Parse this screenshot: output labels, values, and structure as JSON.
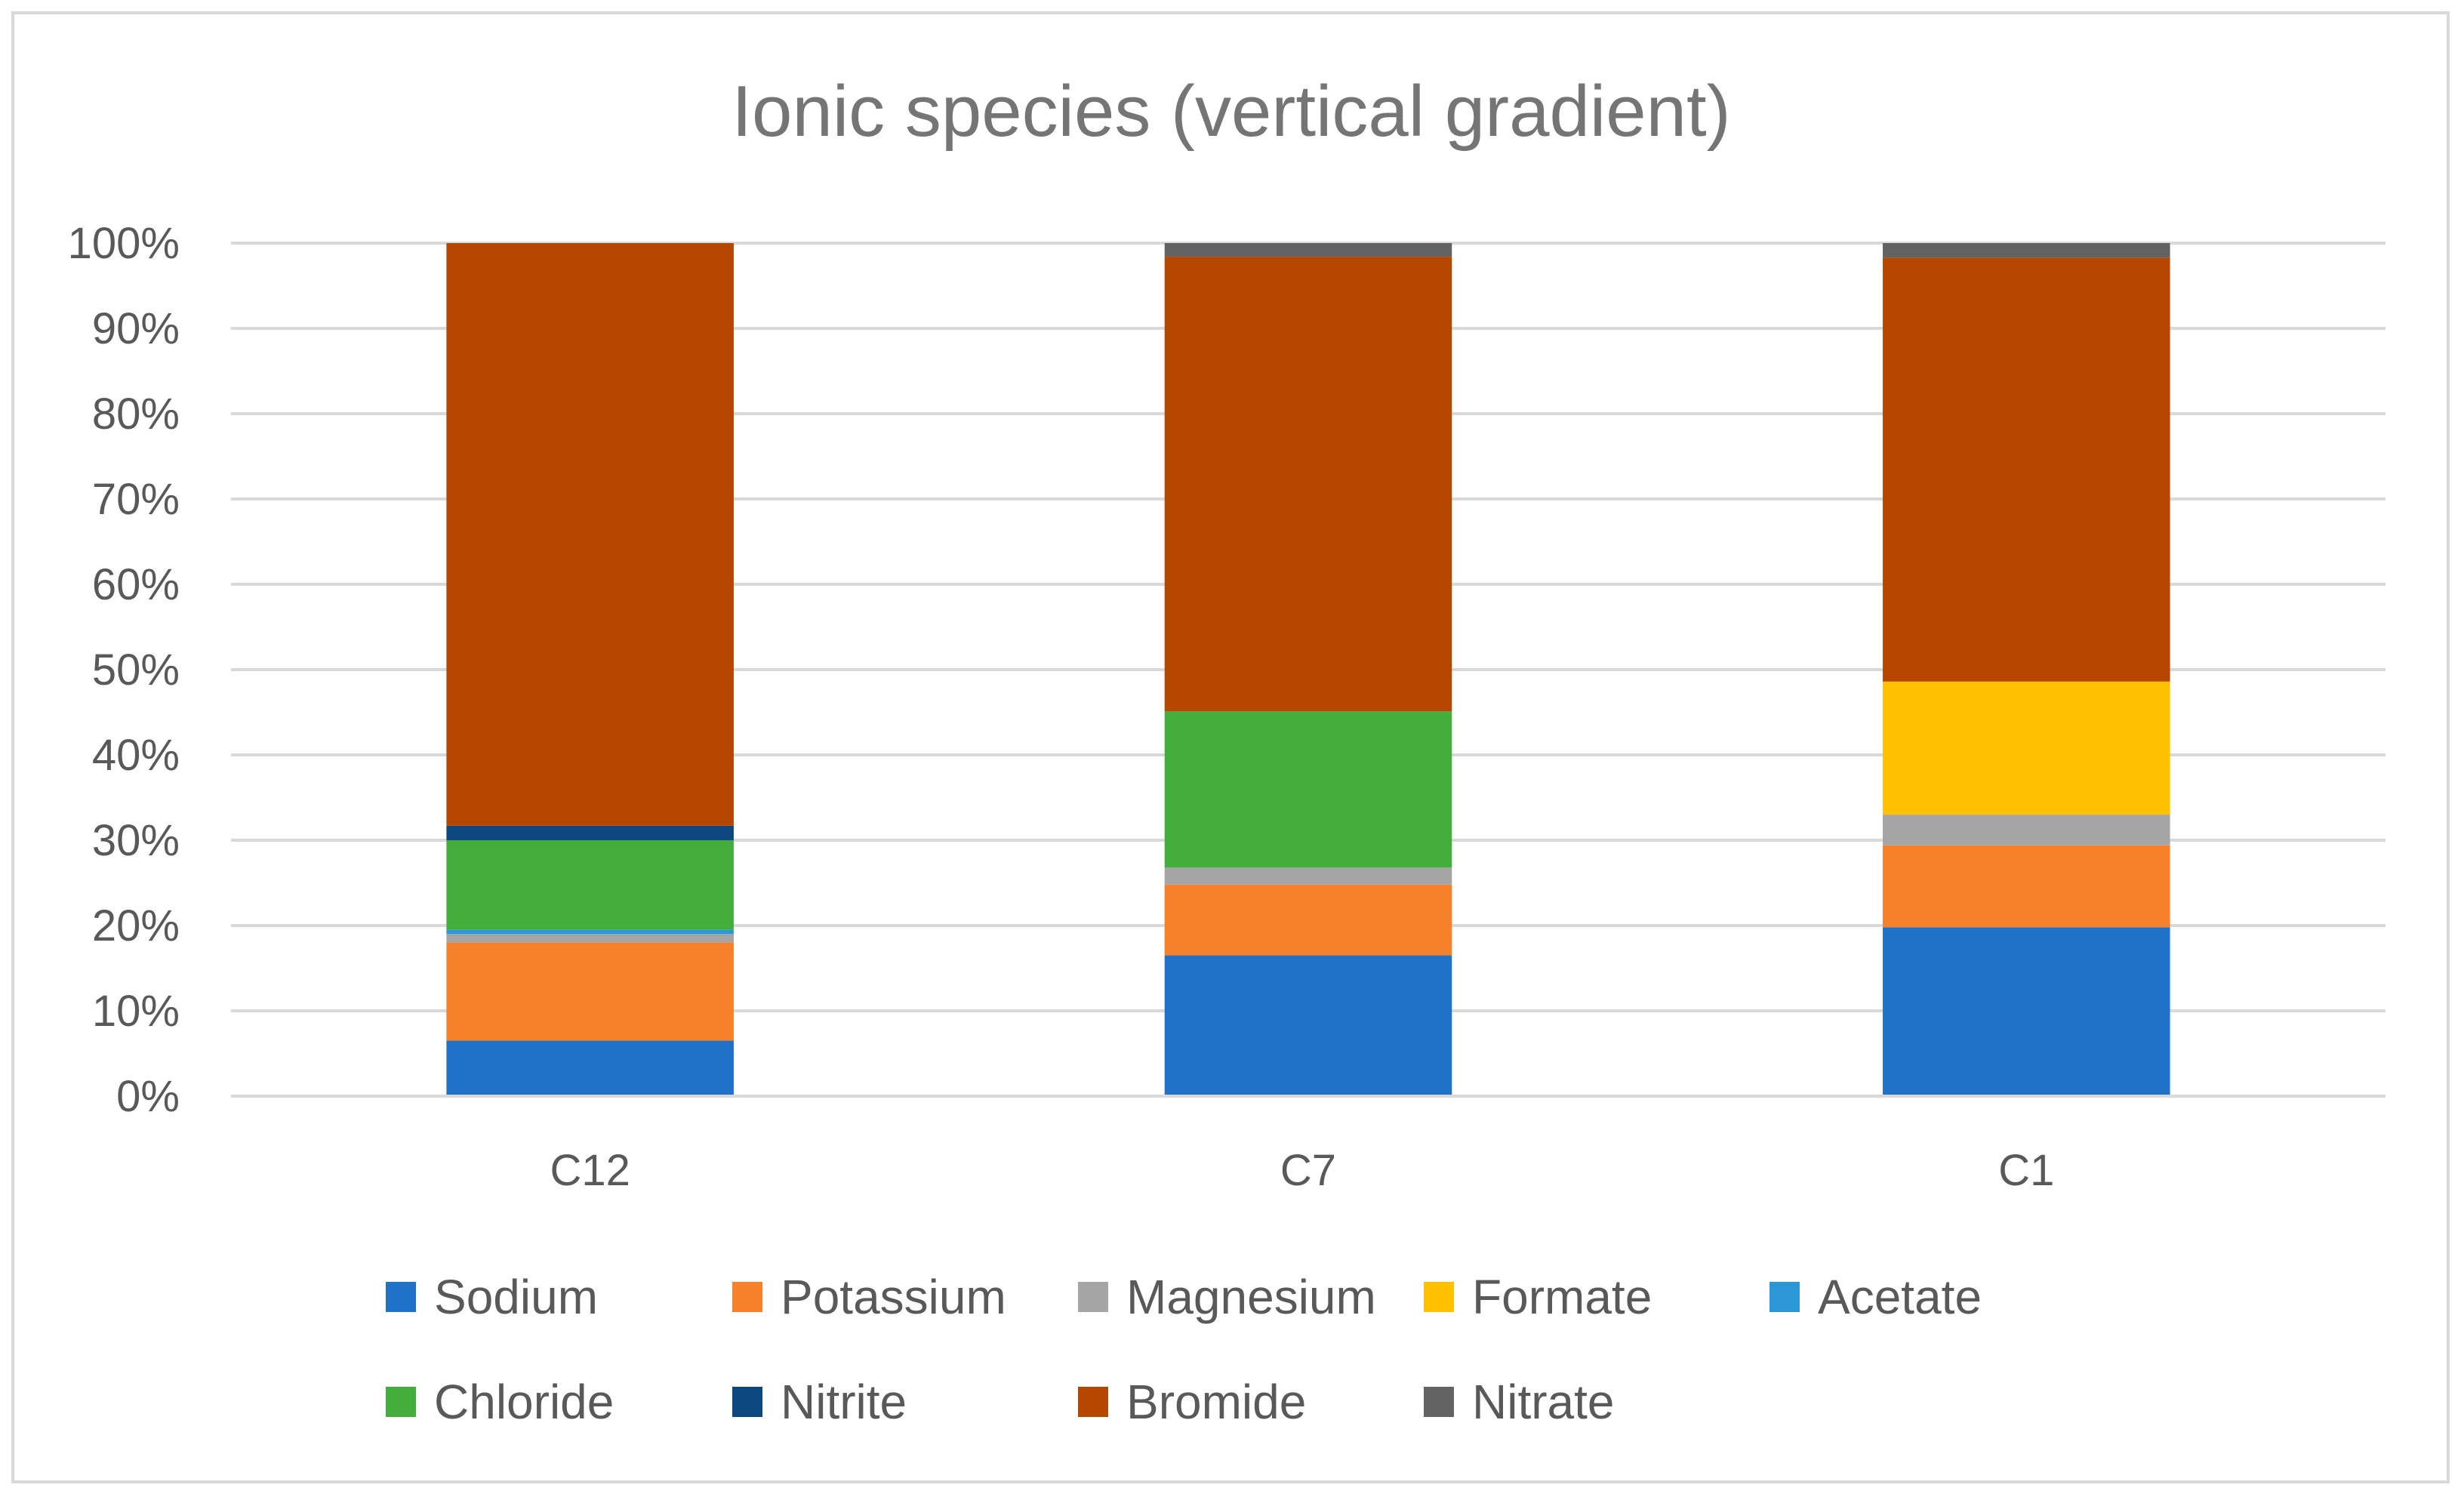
{
  "chart_data": {
    "type": "bar",
    "stacked": true,
    "percent": true,
    "title": "Ionic species (vertical gradient)",
    "xlabel": "",
    "ylabel": "",
    "ylim": [
      0,
      100
    ],
    "y_ticks": [
      "0%",
      "10%",
      "20%",
      "30%",
      "40%",
      "50%",
      "60%",
      "70%",
      "80%",
      "90%",
      "100%"
    ],
    "categories": [
      "C12",
      "C7",
      "C1"
    ],
    "legend_position": "bottom",
    "series": [
      {
        "name": "Sodium",
        "color": "#1f72c7",
        "values": [
          6.5,
          16.5,
          19.8
        ]
      },
      {
        "name": "Potassium",
        "color": "#f7802b",
        "values": [
          11.5,
          8.3,
          9.6
        ]
      },
      {
        "name": "Magnesium",
        "color": "#a5a5a5",
        "values": [
          1.0,
          2.0,
          3.6
        ]
      },
      {
        "name": "Formate",
        "color": "#ffc000",
        "values": [
          0,
          0,
          15.6
        ]
      },
      {
        "name": "Acetate",
        "color": "#2b97d6",
        "values": [
          0.5,
          0,
          0
        ]
      },
      {
        "name": "Chloride",
        "color": "#44ae3d",
        "values": [
          10.5,
          18.3,
          0
        ]
      },
      {
        "name": "Nitrite",
        "color": "#0d4780",
        "values": [
          1.7,
          0,
          0
        ]
      },
      {
        "name": "Bromide",
        "color": "#b54700",
        "values": [
          68.3,
          53.3,
          49.7
        ]
      },
      {
        "name": "Nitrate",
        "color": "#636363",
        "values": [
          0,
          1.6,
          1.7
        ]
      }
    ]
  }
}
